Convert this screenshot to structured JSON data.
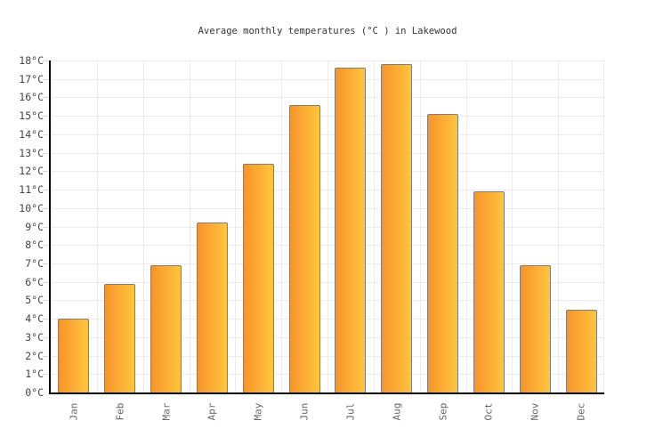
{
  "chart_data": {
    "type": "bar",
    "title": "Average monthly temperatures (°C ) in Lakewood",
    "unit": "°C",
    "categories": [
      "Jan",
      "Feb",
      "Mar",
      "Apr",
      "May",
      "Jun",
      "Jul",
      "Aug",
      "Sep",
      "Oct",
      "Nov",
      "Dec"
    ],
    "values": [
      4.0,
      5.9,
      6.9,
      9.2,
      12.4,
      15.6,
      17.6,
      17.8,
      15.1,
      10.9,
      6.9,
      4.5
    ],
    "ylim": [
      0,
      18
    ],
    "y_tick_step": 1,
    "y_tick_labels": [
      "0°C",
      "1°C",
      "2°C",
      "3°C",
      "4°C",
      "5°C",
      "6°C",
      "7°C",
      "8°C",
      "9°C",
      "10°C",
      "11°C",
      "12°C",
      "13°C",
      "14°C",
      "15°C",
      "16°C",
      "17°C",
      "18°C"
    ],
    "grid": true,
    "legend": "none",
    "colors": {
      "background": "#FFFFFF",
      "bar_gradient_start": "#F8932B",
      "bar_gradient_end": "#FEC53E",
      "bar_border": "#7E7E7E",
      "axis_line": "#000000",
      "gridline": "#ECECEC",
      "tick_mark": "#D9D9D9",
      "y_label_color": "#444444",
      "x_label_color": "#666666",
      "title_color": "#333333"
    }
  }
}
